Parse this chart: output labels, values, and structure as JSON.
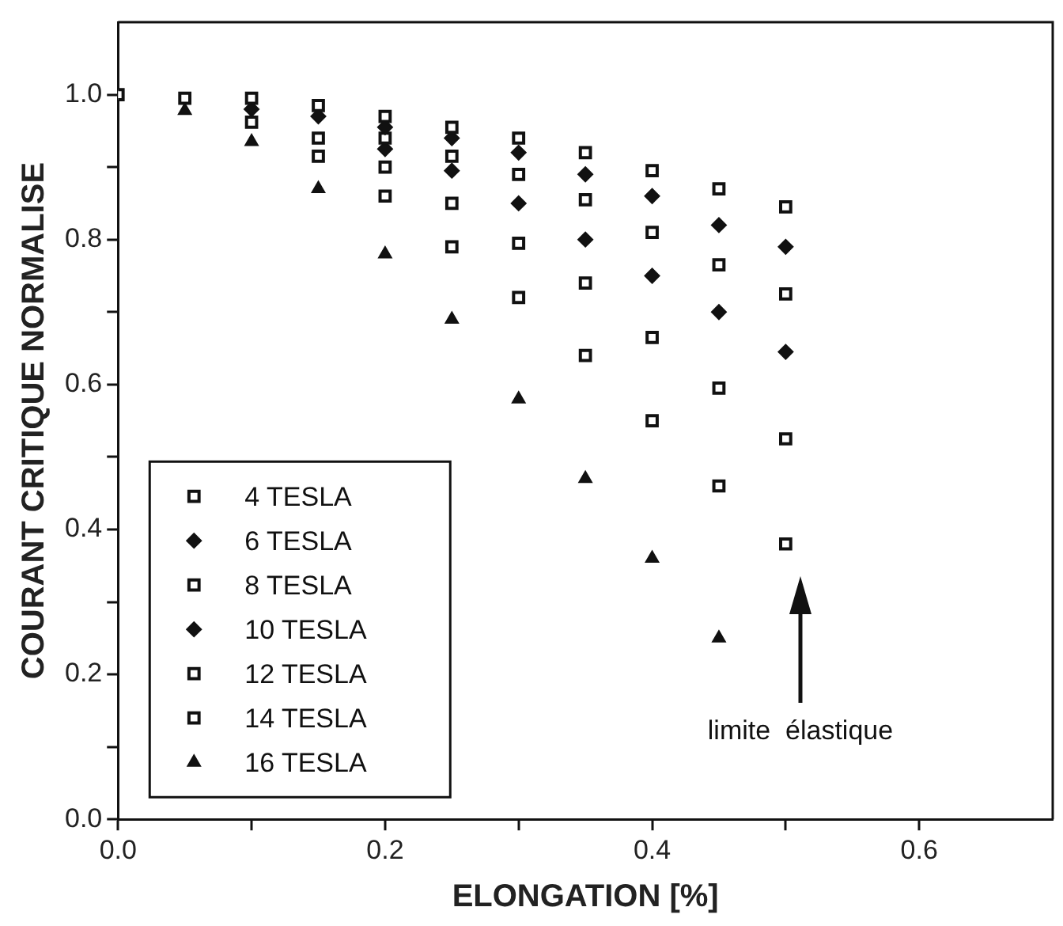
{
  "chart_data": {
    "type": "scatter",
    "xlabel": "ELONGATION [%]",
    "ylabel": "COURANT CRITIQUE NORMALISE",
    "x": [
      0,
      0.05,
      0.1,
      0.15,
      0.2,
      0.25,
      0.3,
      0.35,
      0.4,
      0.45,
      0.5
    ],
    "series": [
      {
        "name": "4 TESLA",
        "color": "#111111",
        "marker": "square",
        "values": [
          null,
          null,
          0.995,
          0.985,
          0.97,
          0.955,
          0.94,
          0.92,
          0.895,
          0.87,
          0.845
        ]
      },
      {
        "name": "6 TESLA",
        "color": "#111111",
        "marker": "diamond",
        "values": [
          null,
          null,
          0.98,
          0.97,
          0.955,
          0.94,
          0.92,
          0.89,
          0.86,
          0.82,
          0.79
        ]
      },
      {
        "name": "8 TESLA",
        "color": "#111111",
        "marker": "square",
        "values": [
          null,
          null,
          null,
          null,
          0.94,
          0.915,
          0.89,
          0.855,
          0.81,
          0.765,
          0.725
        ]
      },
      {
        "name": "10 TESLA",
        "color": "#111111",
        "marker": "diamond",
        "values": [
          null,
          null,
          null,
          null,
          0.925,
          0.895,
          0.85,
          0.8,
          0.75,
          0.7,
          0.645
        ]
      },
      {
        "name": "12 TESLA",
        "color": "#111111",
        "marker": "square",
        "values": [
          1.0,
          0.995,
          0.962,
          0.94,
          0.9,
          0.85,
          0.795,
          0.74,
          0.665,
          0.595,
          0.525
        ]
      },
      {
        "name": "14 TESLA",
        "color": "#111111",
        "marker": "square",
        "values": [
          null,
          null,
          null,
          0.915,
          0.86,
          0.79,
          0.72,
          0.64,
          0.55,
          0.46,
          0.38
        ]
      },
      {
        "name": "16 TESLA",
        "color": "#111111",
        "marker": "triangle",
        "values": [
          null,
          0.978,
          0.935,
          0.87,
          0.78,
          0.69,
          0.58,
          0.47,
          0.36,
          0.25,
          null
        ]
      }
    ],
    "xlim": [
      0,
      0.7
    ],
    "ylim": [
      0,
      1.1
    ],
    "xticks": [
      {
        "value": 0,
        "label": "0.0"
      },
      {
        "value": 0.1,
        "label": null
      },
      {
        "value": 0.2,
        "label": "0.2"
      },
      {
        "value": 0.3,
        "label": null
      },
      {
        "value": 0.4,
        "label": "0.4"
      },
      {
        "value": 0.5,
        "label": null
      },
      {
        "value": 0.6,
        "label": "0.6"
      }
    ],
    "yticks": [
      {
        "value": 0,
        "label": "0.0"
      },
      {
        "value": 0.1,
        "label": null
      },
      {
        "value": 0.2,
        "label": "0.2"
      },
      {
        "value": 0.3,
        "label": null
      },
      {
        "value": 0.4,
        "label": "0.4"
      },
      {
        "value": 0.5,
        "label": null
      },
      {
        "value": 0.6,
        "label": "0.6"
      },
      {
        "value": 0.7,
        "label": null
      },
      {
        "value": 0.8,
        "label": "0.8"
      },
      {
        "value": 0.9,
        "label": null
      },
      {
        "value": 1.0,
        "label": "1.0"
      }
    ],
    "annotations": [
      "limite  élastique"
    ],
    "legend": "bottom left",
    "grid": false
  }
}
